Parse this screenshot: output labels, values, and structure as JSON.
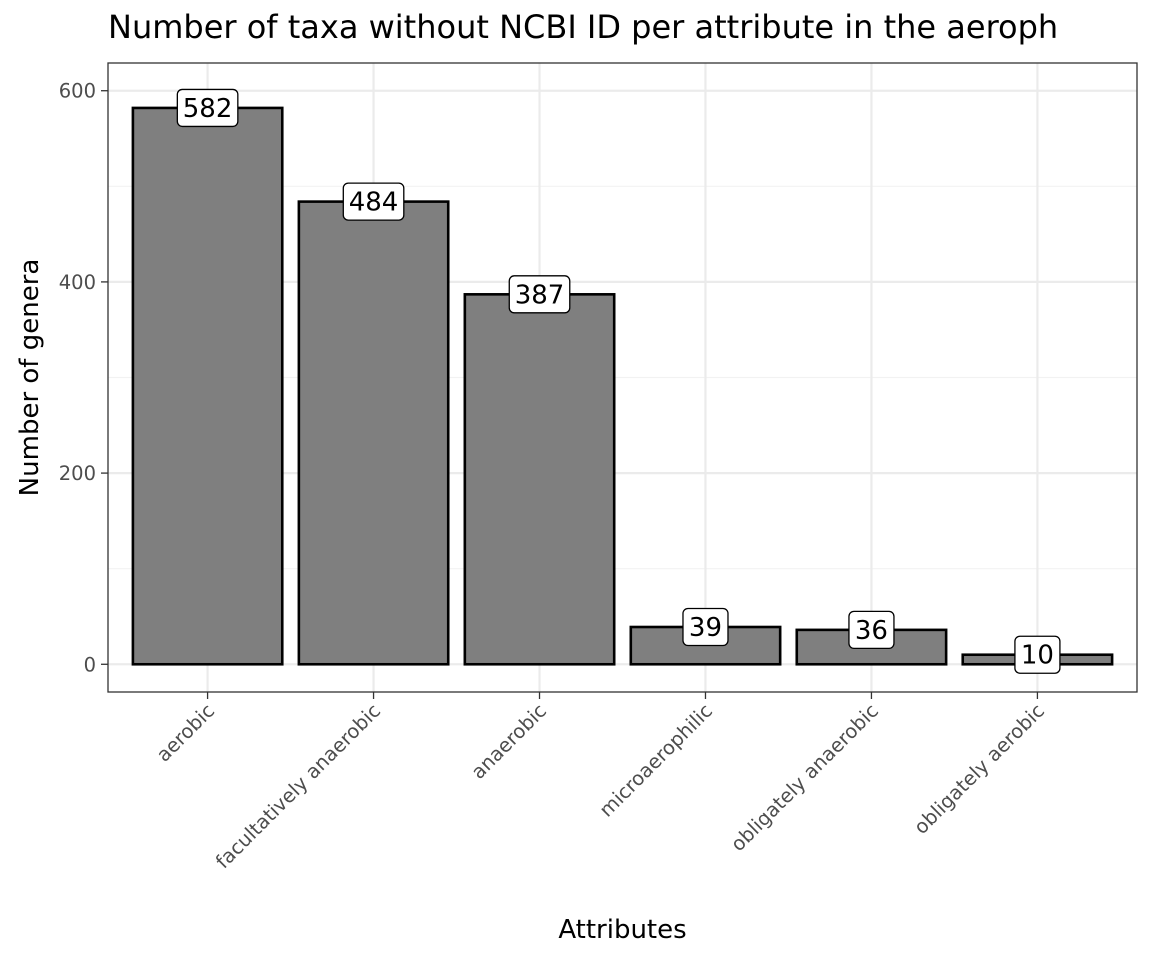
{
  "chart_data": {
    "type": "bar",
    "title": "Number of taxa without NCBI ID per attribute in the aeroph",
    "xlabel": "Attributes",
    "ylabel": "Number of genera",
    "categories": [
      "aerobic",
      "facultatively anaerobic",
      "anaerobic",
      "microaerophilic",
      "obligately anaerobic",
      "obligately aerobic"
    ],
    "values": [
      582,
      484,
      387,
      39,
      36,
      10
    ],
    "data_labels": [
      "582",
      "484",
      "387",
      "39",
      "36",
      "10"
    ],
    "ylim": [
      -29,
      600
    ],
    "yticks": [
      0,
      200,
      400,
      600
    ],
    "ytick_labels": [
      "0",
      "200",
      "400",
      "600"
    ],
    "grid": true,
    "legend": "none",
    "colors": {
      "bar_fill": "#7f7f7f",
      "bar_stroke": "#000000",
      "grid_major": "#ebebeb",
      "grid_minor": "#f2f2f2",
      "panel_border": "#333333"
    }
  }
}
